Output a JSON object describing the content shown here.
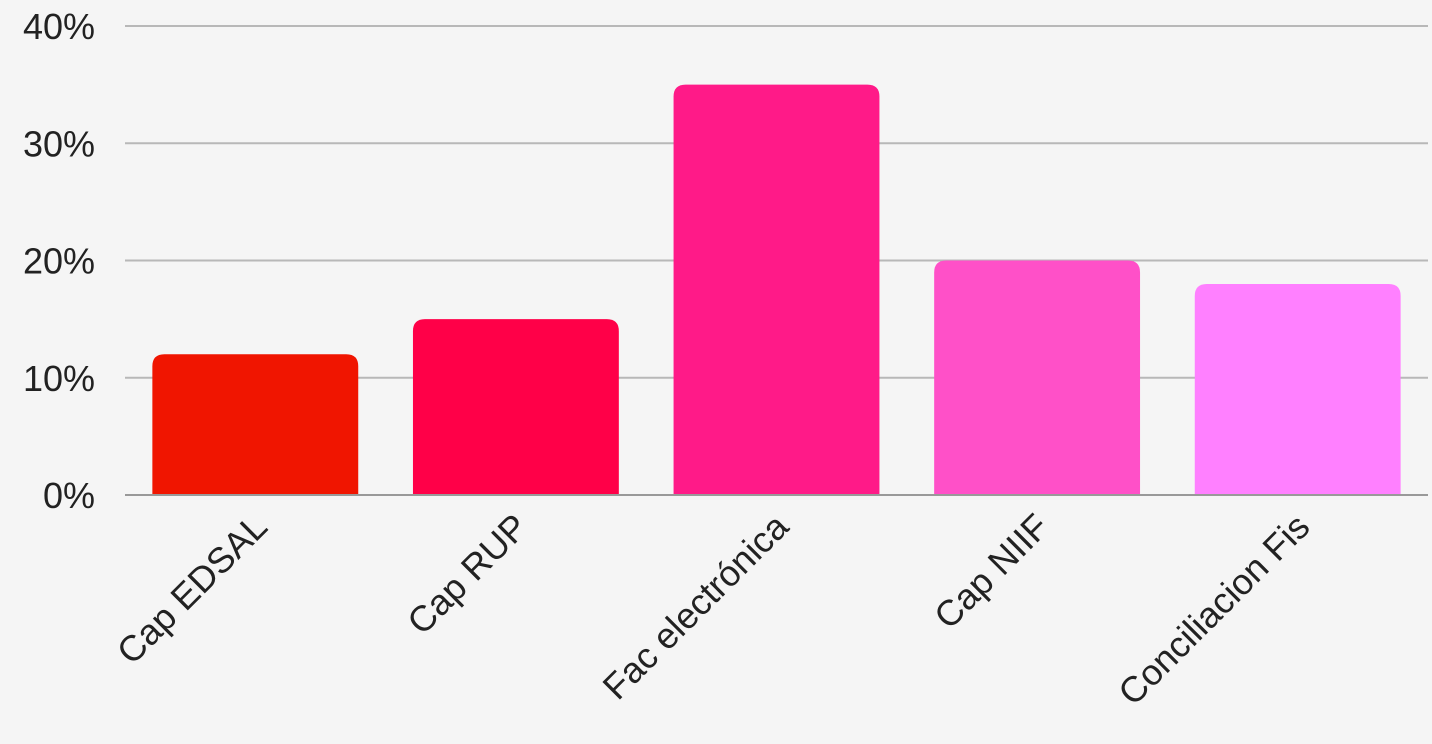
{
  "chart_data": {
    "type": "bar",
    "title": "",
    "xlabel": "",
    "ylabel": "",
    "categories": [
      "Cap EDSAL",
      "Cap RUP",
      "Fac electrónica",
      "Cap NIIF",
      "Conciliacion Fis"
    ],
    "values": [
      12,
      15,
      35,
      20,
      18
    ],
    "value_unit": "%",
    "ylim": [
      0,
      40
    ],
    "yticks": [
      0,
      10,
      20,
      30,
      40
    ],
    "ytick_labels": [
      "0%",
      "10%",
      "20%",
      "30%",
      "40%"
    ],
    "grid": true,
    "legend": "none",
    "bar_colors": [
      "#f01500",
      "#ff0048",
      "#ff1a88",
      "#ff50c8",
      "#ff80ff"
    ],
    "background_color": "#f5f5f5",
    "grid_color": "#b8b8b8"
  }
}
